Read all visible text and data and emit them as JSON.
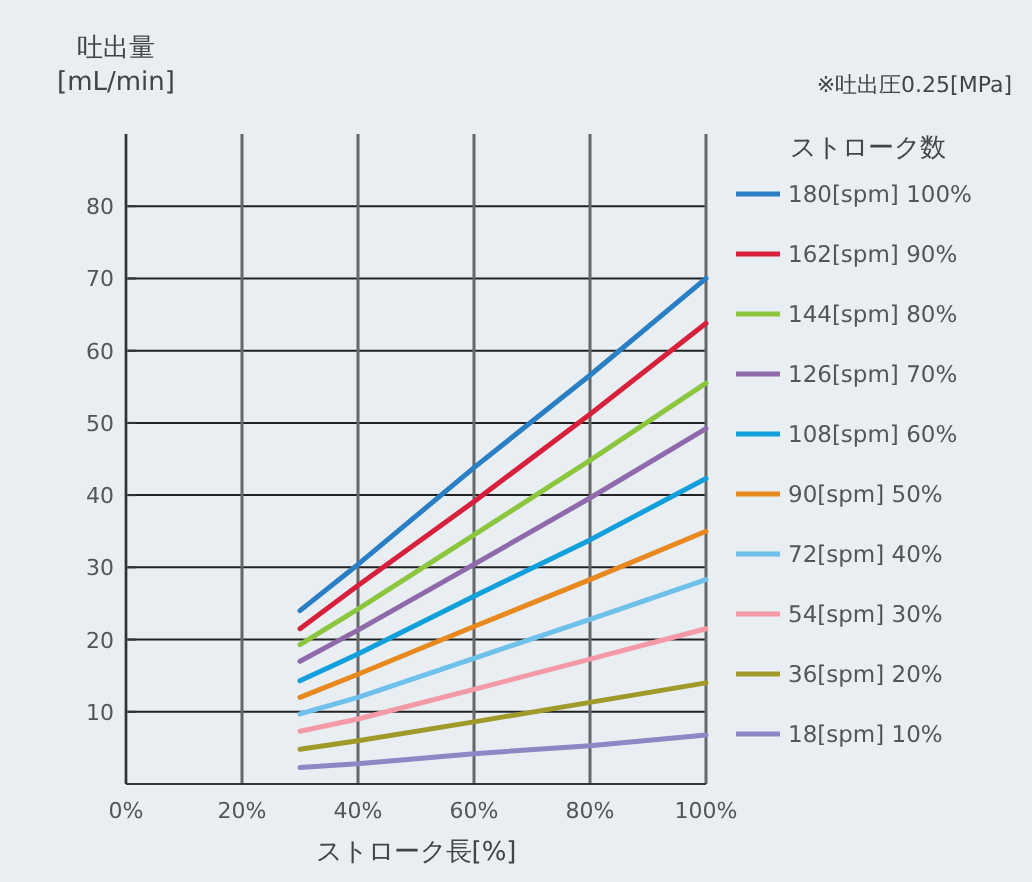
{
  "chart_data": {
    "type": "line",
    "ylabel": "吐出量\n[mL/min]",
    "xlabel": "ストローク長[%]",
    "legend_title": "ストローク数",
    "annotations": [
      "※吐出圧0.25[MPa]"
    ],
    "x": [
      30,
      40,
      60,
      80,
      100
    ],
    "xlim": [
      0,
      100
    ],
    "xticks": [
      {
        "value": 0,
        "label": "0%"
      },
      {
        "value": 20,
        "label": "20%"
      },
      {
        "value": 40,
        "label": "40%"
      },
      {
        "value": 60,
        "label": "60%"
      },
      {
        "value": 80,
        "label": "80%"
      },
      {
        "value": 100,
        "label": "100%"
      }
    ],
    "ylim": [
      0,
      90
    ],
    "yticks": [
      10,
      20,
      30,
      40,
      50,
      60,
      70,
      80
    ],
    "grid": true,
    "legend": "right",
    "marker": "none",
    "line_style": "solid",
    "series": [
      {
        "name": "180[spm]  100%",
        "color": "#2a7fc4",
        "values": [
          24,
          30.4,
          43.8,
          56.6,
          70
        ]
      },
      {
        "name": "162[spm]  90%",
        "color": "#d7203c",
        "values": [
          21.5,
          27.5,
          39.1,
          51.2,
          63.8
        ]
      },
      {
        "name": "144[spm]  80%",
        "color": "#8cc63f",
        "values": [
          19.3,
          24.2,
          34.5,
          44.8,
          55.5
        ]
      },
      {
        "name": "126[spm]  70%",
        "color": "#8e6aab",
        "values": [
          17,
          21.3,
          30.4,
          39.6,
          49.2
        ]
      },
      {
        "name": "108[spm]  60%",
        "color": "#139fdb",
        "values": [
          14.3,
          18,
          26,
          33.8,
          42.3
        ]
      },
      {
        "name": "90[spm]  50%",
        "color": "#e8891f",
        "values": [
          12,
          15.2,
          21.8,
          28.3,
          35
        ]
      },
      {
        "name": "72[spm]  40%",
        "color": "#6fc0ea",
        "values": [
          9.7,
          12,
          17.4,
          22.8,
          28.3
        ]
      },
      {
        "name": "54[spm]  30%",
        "color": "#f39aa6",
        "values": [
          7.3,
          9,
          13.1,
          17.3,
          21.5
        ]
      },
      {
        "name": "36[spm]  20%",
        "color": "#a09a2a",
        "values": [
          4.8,
          6,
          8.6,
          11.3,
          14
        ]
      },
      {
        "name": "18[spm]  10%",
        "color": "#8f86c6",
        "values": [
          2.3,
          2.8,
          4.2,
          5.3,
          6.8
        ]
      }
    ]
  }
}
